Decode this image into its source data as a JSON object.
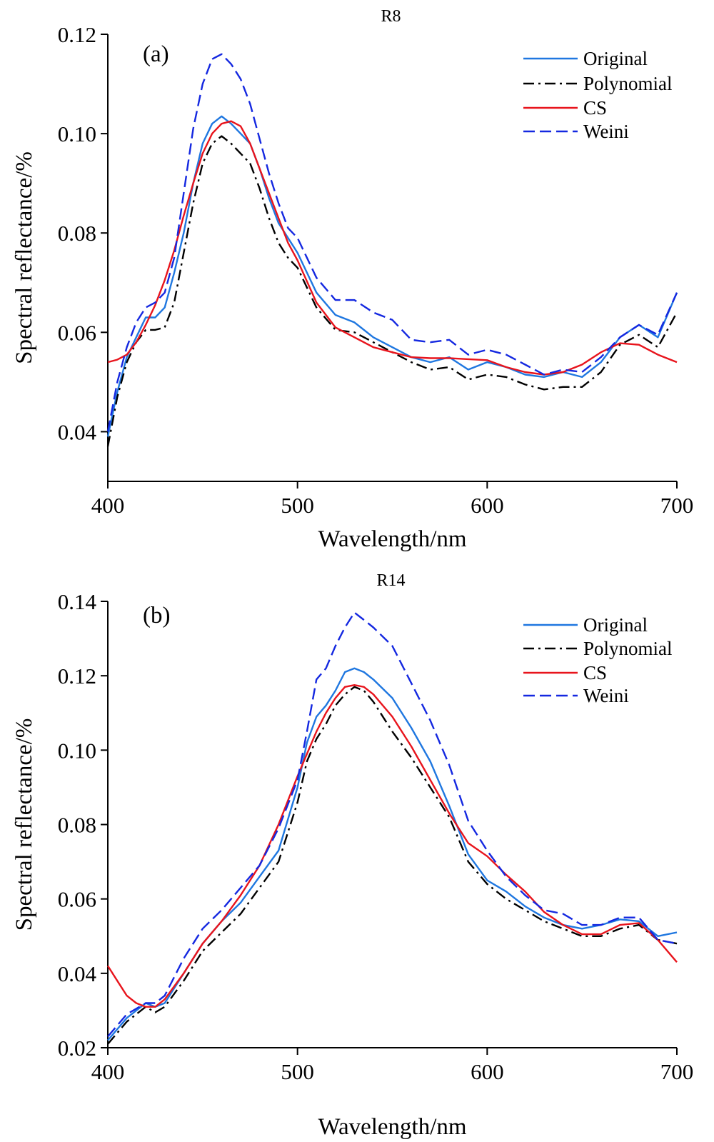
{
  "chart_data": [
    {
      "type": "line",
      "title": "R8",
      "panel_label": "(a)",
      "xlabel": "Wavelength/nm",
      "ylabel": "Spectral reflectance/%",
      "xlim": [
        400,
        700
      ],
      "ylim": [
        0.03,
        0.12
      ],
      "xticks": [
        "400",
        "500",
        "600",
        "700"
      ],
      "yticks": [
        "0.04",
        "0.06",
        "0.08",
        "0.10",
        "0.12"
      ],
      "legend_position": "top-right",
      "series": [
        {
          "name": "Original",
          "color": "#1f77e0",
          "dash": "solid",
          "x": [
            400,
            405,
            410,
            415,
            420,
            425,
            430,
            435,
            440,
            445,
            450,
            455,
            460,
            465,
            470,
            475,
            480,
            485,
            490,
            495,
            500,
            510,
            520,
            530,
            540,
            550,
            560,
            570,
            580,
            590,
            600,
            610,
            620,
            630,
            640,
            650,
            660,
            670,
            680,
            690,
            700
          ],
          "y": [
            0.039,
            0.048,
            0.055,
            0.059,
            0.063,
            0.063,
            0.065,
            0.072,
            0.08,
            0.09,
            0.098,
            0.102,
            0.1035,
            0.102,
            0.1,
            0.098,
            0.093,
            0.087,
            0.082,
            0.079,
            0.076,
            0.068,
            0.0635,
            0.062,
            0.059,
            0.057,
            0.055,
            0.054,
            0.055,
            0.0525,
            0.054,
            0.053,
            0.0515,
            0.051,
            0.052,
            0.051,
            0.054,
            0.059,
            0.0615,
            0.059,
            0.068
          ]
        },
        {
          "name": "Polynomial",
          "color": "#000000",
          "dash": "dashdot",
          "x": [
            400,
            405,
            410,
            415,
            420,
            425,
            430,
            435,
            440,
            445,
            450,
            455,
            460,
            465,
            470,
            475,
            480,
            485,
            490,
            495,
            500,
            510,
            520,
            530,
            540,
            550,
            560,
            570,
            580,
            590,
            600,
            610,
            620,
            630,
            640,
            650,
            660,
            670,
            680,
            690,
            700
          ],
          "y": [
            0.037,
            0.047,
            0.054,
            0.058,
            0.0605,
            0.0605,
            0.061,
            0.066,
            0.076,
            0.086,
            0.094,
            0.098,
            0.0995,
            0.098,
            0.096,
            0.094,
            0.089,
            0.083,
            0.078,
            0.075,
            0.073,
            0.065,
            0.0605,
            0.06,
            0.058,
            0.056,
            0.054,
            0.0525,
            0.053,
            0.0505,
            0.0515,
            0.051,
            0.0495,
            0.0485,
            0.049,
            0.049,
            0.052,
            0.0575,
            0.0595,
            0.057,
            0.064
          ]
        },
        {
          "name": "CS",
          "color": "#e8141c",
          "dash": "solid",
          "x": [
            400,
            405,
            410,
            415,
            420,
            425,
            430,
            435,
            440,
            445,
            450,
            455,
            460,
            465,
            470,
            475,
            480,
            485,
            490,
            495,
            500,
            510,
            520,
            530,
            540,
            550,
            560,
            570,
            580,
            590,
            600,
            610,
            620,
            630,
            640,
            650,
            660,
            670,
            680,
            690,
            700
          ],
          "y": [
            0.054,
            0.0545,
            0.0555,
            0.058,
            0.0615,
            0.0655,
            0.0705,
            0.0765,
            0.0835,
            0.09,
            0.096,
            0.1,
            0.102,
            0.1025,
            0.1015,
            0.098,
            0.093,
            0.088,
            0.083,
            0.078,
            0.0745,
            0.066,
            0.061,
            0.059,
            0.057,
            0.056,
            0.055,
            0.0548,
            0.0548,
            0.0546,
            0.0544,
            0.053,
            0.052,
            0.0515,
            0.052,
            0.0535,
            0.056,
            0.0578,
            0.0575,
            0.0555,
            0.054
          ]
        },
        {
          "name": "Weini",
          "color": "#1428e0",
          "dash": "dashed",
          "x": [
            400,
            405,
            410,
            415,
            420,
            425,
            430,
            435,
            440,
            445,
            450,
            455,
            460,
            465,
            470,
            475,
            480,
            485,
            490,
            495,
            500,
            510,
            520,
            530,
            540,
            550,
            560,
            570,
            580,
            590,
            600,
            610,
            620,
            630,
            640,
            650,
            660,
            670,
            680,
            690,
            700
          ],
          "y": [
            0.04,
            0.05,
            0.057,
            0.062,
            0.065,
            0.066,
            0.068,
            0.075,
            0.088,
            0.101,
            0.11,
            0.115,
            0.116,
            0.114,
            0.111,
            0.106,
            0.099,
            0.092,
            0.086,
            0.081,
            0.079,
            0.071,
            0.0665,
            0.0665,
            0.064,
            0.0625,
            0.0585,
            0.058,
            0.0585,
            0.0555,
            0.0565,
            0.0555,
            0.0535,
            0.0515,
            0.0525,
            0.052,
            0.055,
            0.059,
            0.0615,
            0.0595,
            0.068
          ]
        }
      ]
    },
    {
      "type": "line",
      "title": "R14",
      "panel_label": "(b)",
      "xlabel": "Wavelength/nm",
      "ylabel": "Spectral reflectance/%",
      "xlim": [
        400,
        700
      ],
      "ylim": [
        0.02,
        0.14
      ],
      "xticks": [
        "400",
        "500",
        "600",
        "700"
      ],
      "yticks": [
        "0.02",
        "0.04",
        "0.06",
        "0.08",
        "0.10",
        "0.12",
        "0.14"
      ],
      "legend_position": "top-right",
      "series": [
        {
          "name": "Original",
          "color": "#1f77e0",
          "dash": "solid",
          "x": [
            400,
            410,
            420,
            425,
            430,
            440,
            450,
            460,
            470,
            480,
            490,
            500,
            505,
            510,
            515,
            520,
            525,
            530,
            535,
            540,
            550,
            560,
            570,
            580,
            590,
            600,
            610,
            620,
            630,
            640,
            650,
            660,
            670,
            680,
            690,
            700
          ],
          "y": [
            0.022,
            0.028,
            0.032,
            0.031,
            0.032,
            0.04,
            0.048,
            0.054,
            0.059,
            0.066,
            0.073,
            0.09,
            0.102,
            0.109,
            0.112,
            0.116,
            0.121,
            0.122,
            0.121,
            0.119,
            0.114,
            0.106,
            0.097,
            0.085,
            0.072,
            0.065,
            0.062,
            0.058,
            0.055,
            0.053,
            0.052,
            0.053,
            0.0545,
            0.054,
            0.05,
            0.051
          ]
        },
        {
          "name": "Polynomial",
          "color": "#000000",
          "dash": "dashdot",
          "x": [
            400,
            410,
            420,
            425,
            430,
            440,
            450,
            460,
            470,
            480,
            490,
            500,
            505,
            510,
            515,
            520,
            525,
            530,
            535,
            540,
            550,
            560,
            570,
            580,
            590,
            600,
            610,
            620,
            630,
            640,
            650,
            660,
            670,
            680,
            690,
            700
          ],
          "y": [
            0.021,
            0.027,
            0.031,
            0.0295,
            0.031,
            0.038,
            0.046,
            0.051,
            0.056,
            0.063,
            0.07,
            0.086,
            0.097,
            0.103,
            0.107,
            0.112,
            0.115,
            0.117,
            0.116,
            0.113,
            0.105,
            0.098,
            0.09,
            0.082,
            0.07,
            0.064,
            0.06,
            0.057,
            0.054,
            0.052,
            0.05,
            0.05,
            0.052,
            0.053,
            0.049,
            0.048
          ]
        },
        {
          "name": "CS",
          "color": "#e8141c",
          "dash": "solid",
          "x": [
            400,
            405,
            410,
            415,
            420,
            425,
            430,
            440,
            450,
            460,
            470,
            480,
            490,
            500,
            505,
            510,
            515,
            520,
            525,
            530,
            535,
            540,
            550,
            560,
            570,
            580,
            590,
            600,
            610,
            620,
            630,
            640,
            650,
            660,
            670,
            680,
            690,
            700
          ],
          "y": [
            0.042,
            0.038,
            0.034,
            0.032,
            0.031,
            0.031,
            0.033,
            0.04,
            0.048,
            0.054,
            0.061,
            0.069,
            0.08,
            0.093,
            0.099,
            0.105,
            0.11,
            0.114,
            0.117,
            0.1175,
            0.117,
            0.115,
            0.109,
            0.101,
            0.092,
            0.083,
            0.075,
            0.0715,
            0.0665,
            0.062,
            0.0565,
            0.053,
            0.0505,
            0.0505,
            0.053,
            0.0535,
            0.049,
            0.043
          ]
        },
        {
          "name": "Weini",
          "color": "#1428e0",
          "dash": "dashed",
          "x": [
            400,
            410,
            420,
            425,
            430,
            440,
            450,
            460,
            470,
            480,
            490,
            500,
            505,
            510,
            515,
            520,
            525,
            530,
            535,
            540,
            550,
            560,
            570,
            580,
            590,
            600,
            610,
            620,
            630,
            640,
            650,
            660,
            670,
            680,
            690,
            700
          ],
          "y": [
            0.023,
            0.029,
            0.032,
            0.032,
            0.034,
            0.044,
            0.052,
            0.057,
            0.063,
            0.069,
            0.079,
            0.092,
            0.105,
            0.119,
            0.122,
            0.128,
            0.133,
            0.137,
            0.135,
            0.133,
            0.128,
            0.118,
            0.108,
            0.096,
            0.081,
            0.073,
            0.066,
            0.061,
            0.057,
            0.056,
            0.053,
            0.053,
            0.055,
            0.055,
            0.049,
            0.048
          ]
        }
      ]
    }
  ]
}
